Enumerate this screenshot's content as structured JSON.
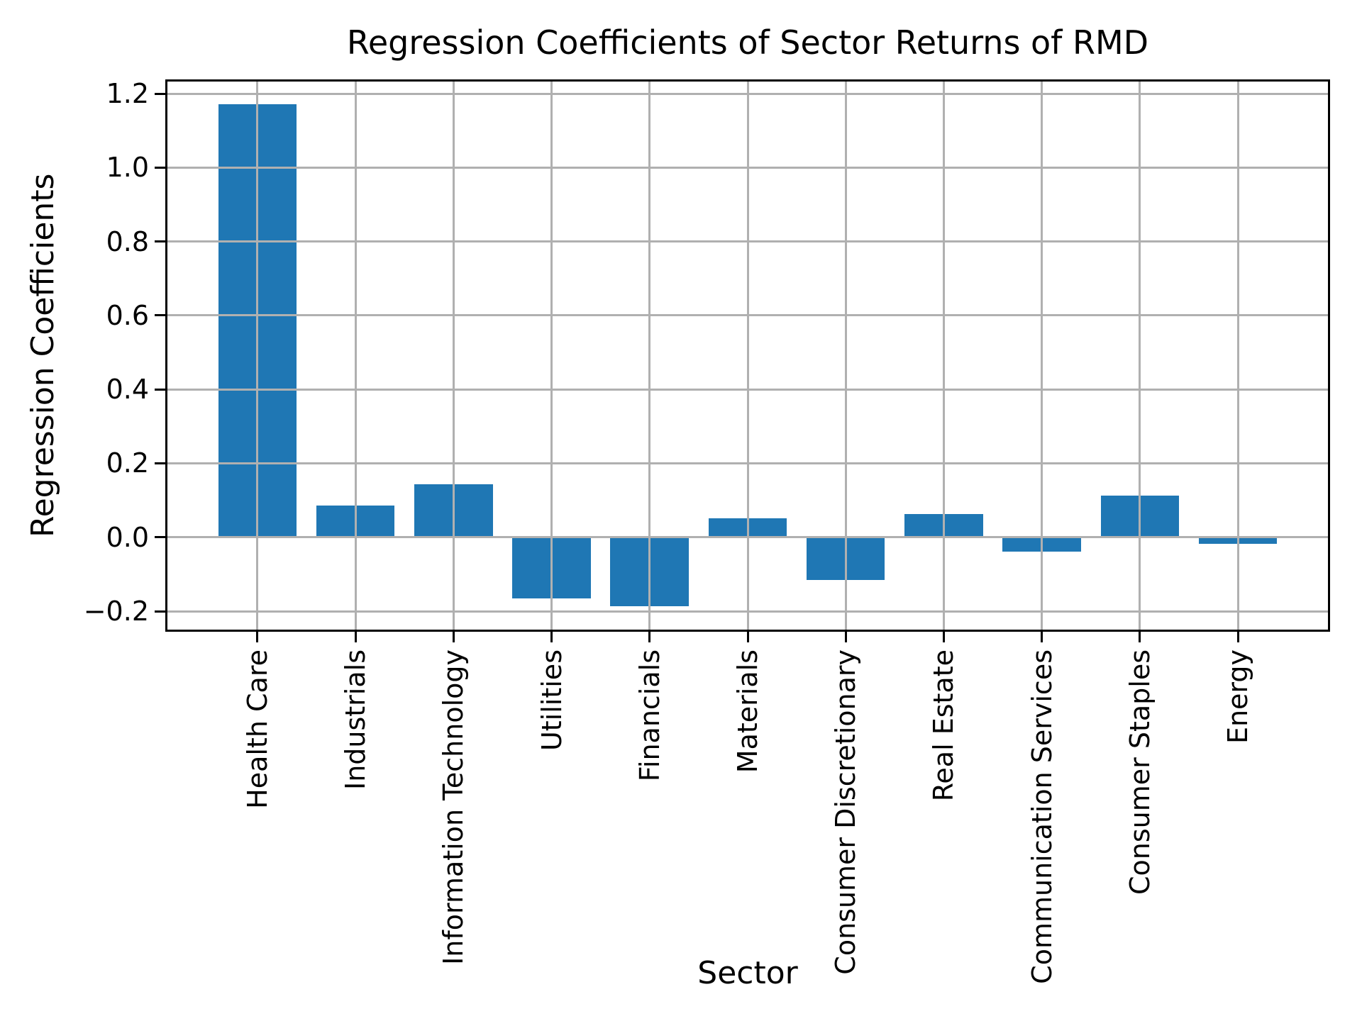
{
  "chart_data": {
    "type": "bar",
    "title": "Regression Coefficients of Sector Returns of RMD",
    "xlabel": "Sector",
    "ylabel": "Regression Coefficients",
    "categories": [
      "Health Care",
      "Industrials",
      "Information Technology",
      "Utilities",
      "Financials",
      "Materials",
      "Consumer Discretionary",
      "Real Estate",
      "Communication Services",
      "Consumer Staples",
      "Energy"
    ],
    "values": [
      1.171,
      0.086,
      0.143,
      -0.165,
      -0.186,
      0.051,
      -0.116,
      0.063,
      -0.039,
      0.112,
      -0.018
    ],
    "yticks": [
      1.2,
      1.0,
      0.8,
      0.6,
      0.4,
      0.2,
      0.0,
      -0.2
    ],
    "ytick_labels": [
      "1.2",
      "1.0",
      "0.8",
      "0.6",
      "0.4",
      "0.2",
      "0.0",
      "−0.2"
    ],
    "ylim": [
      -0.2556,
      1.2386
    ],
    "xlim": [
      -0.94,
      10.94
    ],
    "bar_half_width": 0.4,
    "grid": true,
    "legend": null,
    "colors": {
      "bar": "#1f77b4",
      "grid": "#b0b0b0",
      "spine": "#000000",
      "text": "#000000",
      "background": "#ffffff"
    }
  }
}
